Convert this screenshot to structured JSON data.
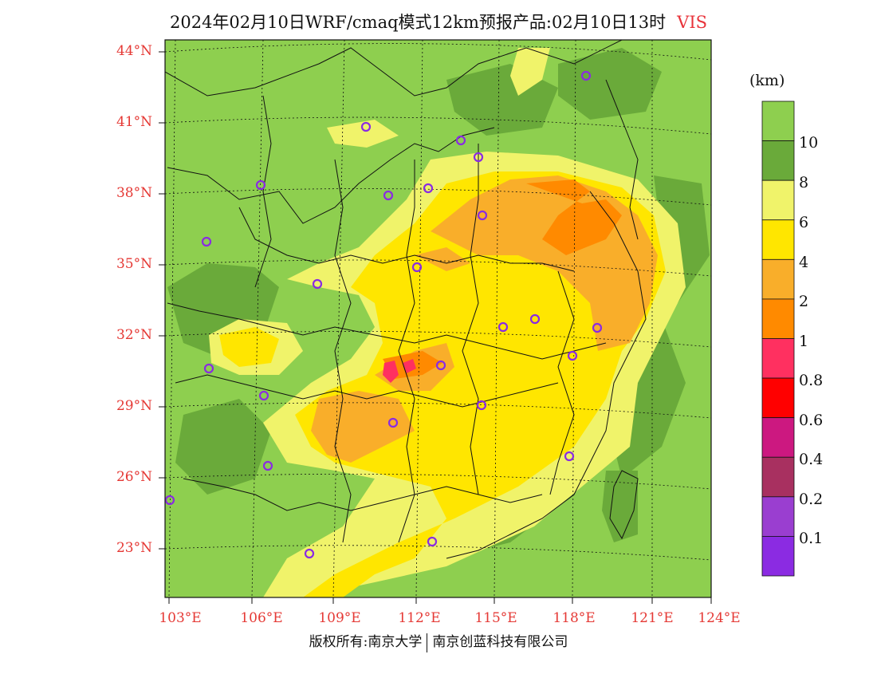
{
  "title": {
    "main": "2024年02月10日WRF/cmaq模式12km预报产品:02月10日13时",
    "variable": "VIS"
  },
  "colorbar": {
    "unit": "(km)",
    "levels": [
      "10",
      "8",
      "6",
      "4",
      "2",
      "1",
      "0.8",
      "0.6",
      "0.4",
      "0.2",
      "0.1"
    ],
    "colors": [
      "#8ecf4f",
      "#6aaa3a",
      "#f0f36a",
      "#ffe600",
      "#f9ae2a",
      "#ff8a00",
      "#ff3060",
      "#ff0000",
      "#cc1880",
      "#a83060",
      "#9a3ed0",
      "#8b2be2"
    ]
  },
  "axes": {
    "lat_labels": [
      "44°N",
      "41°N",
      "38°N",
      "35°N",
      "32°N",
      "29°N",
      "26°N",
      "23°N"
    ],
    "lon_labels": [
      "103°E",
      "106°E",
      "109°E",
      "112°E",
      "115°E",
      "118°E",
      "121°E",
      "124°E"
    ]
  },
  "footer": {
    "left": "版权所有:南京大学",
    "right": "南京创蓝科技有限公司"
  },
  "colors": {
    "axis_label": "#e53935",
    "station_marker": "#8a2be2"
  }
}
